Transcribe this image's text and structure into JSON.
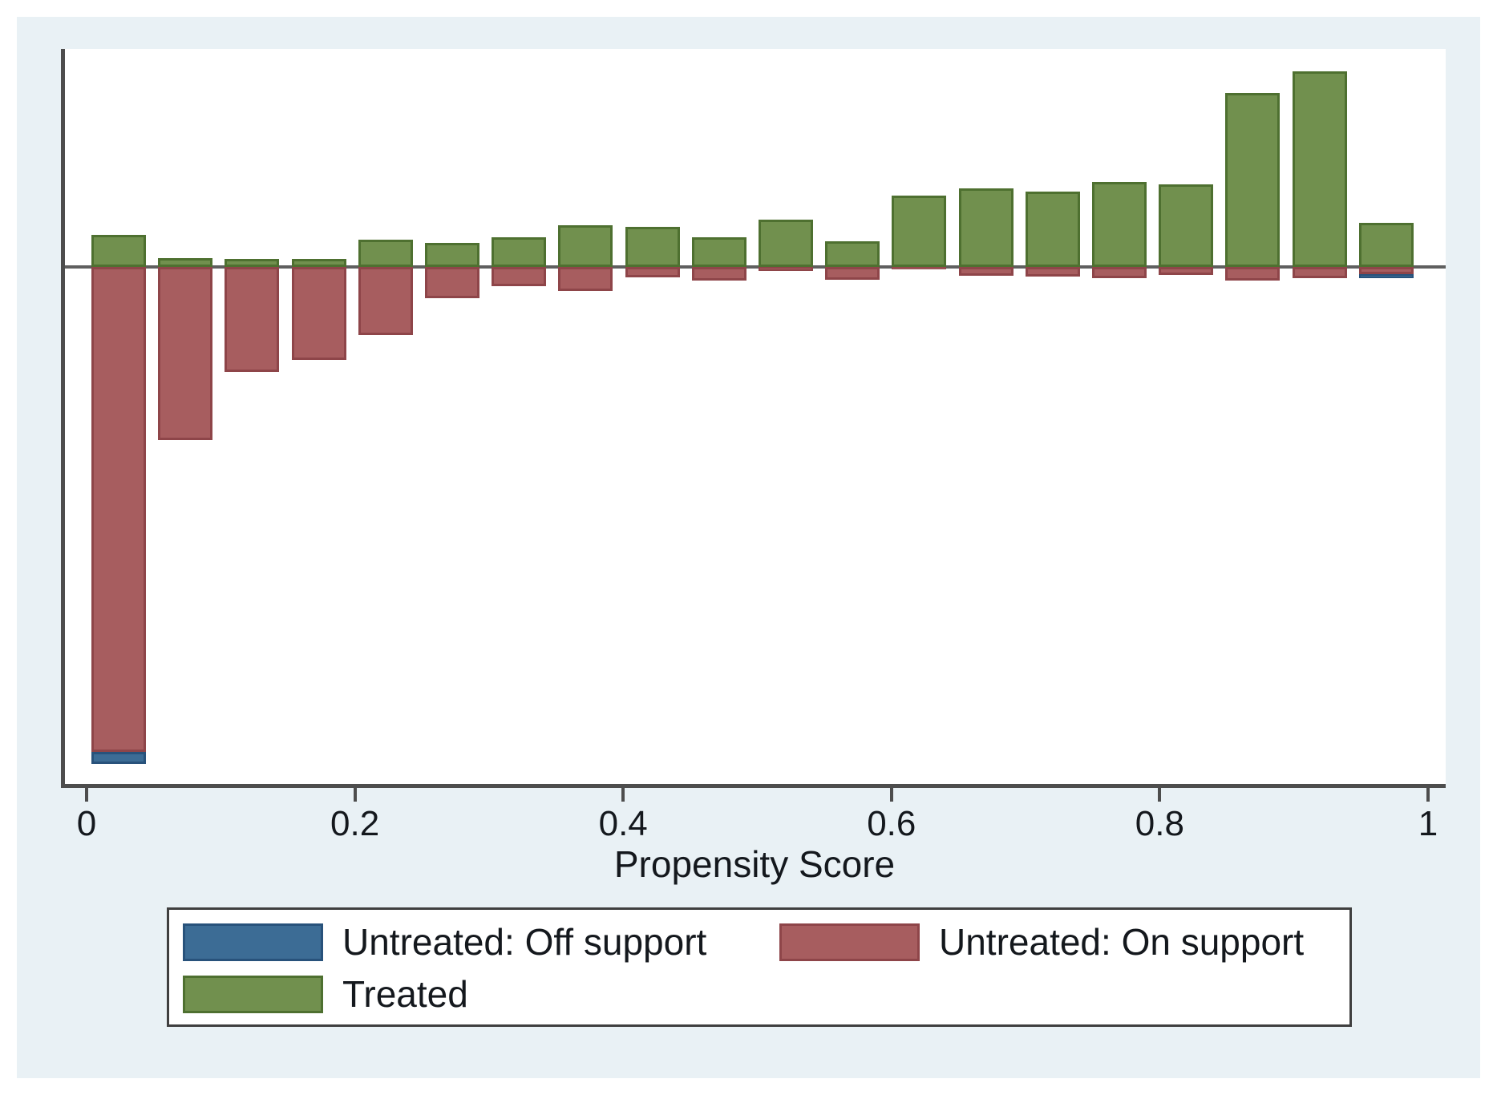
{
  "x_axis": {
    "label": "Propensity Score",
    "ticks": [
      {
        "value": 0,
        "label": "0"
      },
      {
        "value": 0.2,
        "label": "0.2"
      },
      {
        "value": 0.4,
        "label": "0.4"
      },
      {
        "value": 0.6,
        "label": "0.6"
      },
      {
        "value": 0.8,
        "label": "0.8"
      },
      {
        "value": 1,
        "label": "1"
      }
    ]
  },
  "legend": {
    "items": [
      {
        "id": "untreated-off",
        "label": "Untreated: Off support",
        "fill": "#3c6c95",
        "border": "#28527b"
      },
      {
        "id": "untreated-on",
        "label": "Untreated: On support",
        "fill": "#a75d5f",
        "border": "#8e4549"
      },
      {
        "id": "treated",
        "label": "Treated",
        "fill": "#71904e",
        "border": "#4e7030"
      }
    ]
  },
  "colors": {
    "figure_background": "#e9f1f5",
    "plot_background": "#ffffff",
    "axis": "#4d4d4d",
    "zero_line": "#5f5f5f",
    "text": "#14181d"
  },
  "chart_data": {
    "type": "bar",
    "subtype": "diverging common-support histogram (treated above baseline, untreated below)",
    "title": "",
    "xlabel": "Propensity Score",
    "ylabel": "",
    "xlim": [
      0,
      1
    ],
    "xticks": [
      0,
      0.2,
      0.4,
      0.6,
      0.8,
      1
    ],
    "y_axis_labeled": false,
    "y_units": "relative bar height in source-image pixels (chart shows no y-axis scale)",
    "bin_width": 0.05,
    "bin_starts": [
      0,
      0.05,
      0.1,
      0.15,
      0.2,
      0.25,
      0.3,
      0.35,
      0.4,
      0.45,
      0.5,
      0.55,
      0.6,
      0.65,
      0.7,
      0.75,
      0.8,
      0.85,
      0.9,
      0.95
    ],
    "series": [
      {
        "name": "Treated",
        "direction": "up",
        "color": "#71904e",
        "values": [
          40,
          11,
          10,
          10,
          34,
          30,
          37,
          52,
          50,
          37,
          59,
          32,
          89,
          98,
          94,
          106,
          103,
          217,
          244,
          55
        ]
      },
      {
        "name": "Untreated: On support",
        "direction": "down",
        "color": "#a75d5f",
        "values": [
          605,
          216,
          131,
          116,
          85,
          39,
          24,
          30,
          13,
          17,
          5,
          16,
          3,
          11,
          12,
          14,
          10,
          17,
          14,
          9
        ]
      },
      {
        "name": "Untreated: Off support",
        "direction": "down",
        "color": "#3c6c95",
        "values": [
          15,
          0,
          0,
          0,
          0,
          0,
          0,
          0,
          0,
          0,
          0,
          0,
          0,
          0,
          0,
          0,
          0,
          0,
          0,
          5
        ]
      }
    ],
    "legend_position": "bottom",
    "grid": false
  }
}
